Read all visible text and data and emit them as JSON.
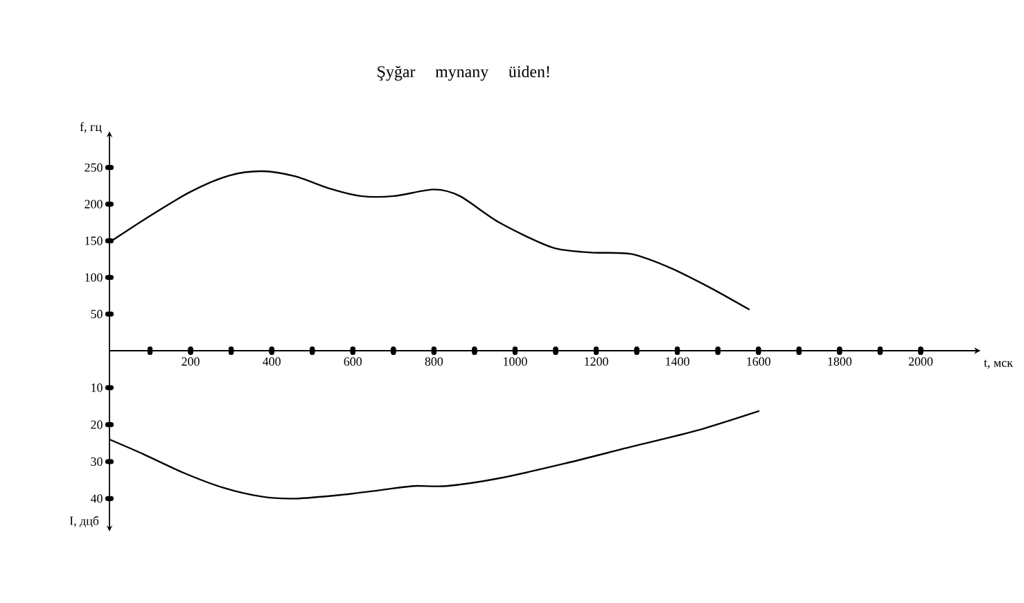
{
  "chart_data": [
    {
      "type": "line",
      "title": "Şyğar mynany üiden!",
      "xlabel": "t, мск",
      "ylabel": "f, гц",
      "color": "#000000",
      "x": [
        0,
        100,
        200,
        295,
        377,
        458,
        539,
        620,
        701,
        800,
        864,
        961,
        1091,
        1188,
        1286,
        1383,
        1481,
        1578
      ],
      "values": [
        148,
        184,
        217,
        239,
        245,
        238,
        222,
        211,
        211,
        220,
        211,
        175,
        141,
        134,
        132,
        113,
        86,
        56
      ],
      "xlim": [
        0,
        2130
      ],
      "ylim": [
        0,
        290
      ],
      "xticks": [
        {
          "value": 100,
          "label": null
        },
        200,
        {
          "value": 300,
          "label": null
        },
        400,
        {
          "value": 500,
          "label": null
        },
        600,
        {
          "value": 700,
          "label": null
        },
        800,
        {
          "value": 900,
          "label": null
        },
        1000,
        {
          "value": 1100,
          "label": null
        },
        1200,
        {
          "value": 1300,
          "label": null
        },
        1400,
        {
          "value": 1500,
          "label": null
        },
        1600,
        {
          "value": 1700,
          "label": null
        },
        1800,
        {
          "value": 1900,
          "label": null
        },
        2000
      ],
      "yticks": [
        50,
        100,
        150,
        200,
        250
      ]
    },
    {
      "type": "line",
      "ylabel": "I, дцб",
      "color": "#000000",
      "tick_labels": "y",
      "x": [
        0,
        84,
        182,
        279,
        377,
        458,
        571,
        669,
        750,
        831,
        961,
        1123,
        1286,
        1448,
        1602
      ],
      "values": [
        24,
        28,
        33,
        37,
        39.5,
        40,
        39,
        37.7,
        36.6,
        36.6,
        34.5,
        30.5,
        26,
        21.6,
        16.3
      ],
      "xlim": [
        0,
        2130
      ],
      "ylim": [
        47,
        0
      ],
      "xticks": [
        {
          "value": 100,
          "label": null
        },
        200,
        {
          "value": 300,
          "label": null
        },
        400,
        {
          "value": 500,
          "label": null
        },
        600,
        {
          "value": 700,
          "label": null
        },
        800,
        {
          "value": 900,
          "label": null
        },
        1000,
        {
          "value": 1100,
          "label": null
        },
        1200,
        {
          "value": 1300,
          "label": null
        },
        1400,
        {
          "value": 1500,
          "label": null
        },
        1600,
        {
          "value": 1700,
          "label": null
        },
        1800,
        {
          "value": 1900,
          "label": null
        },
        2000
      ],
      "yticks": [
        10,
        20,
        30,
        40
      ]
    }
  ]
}
